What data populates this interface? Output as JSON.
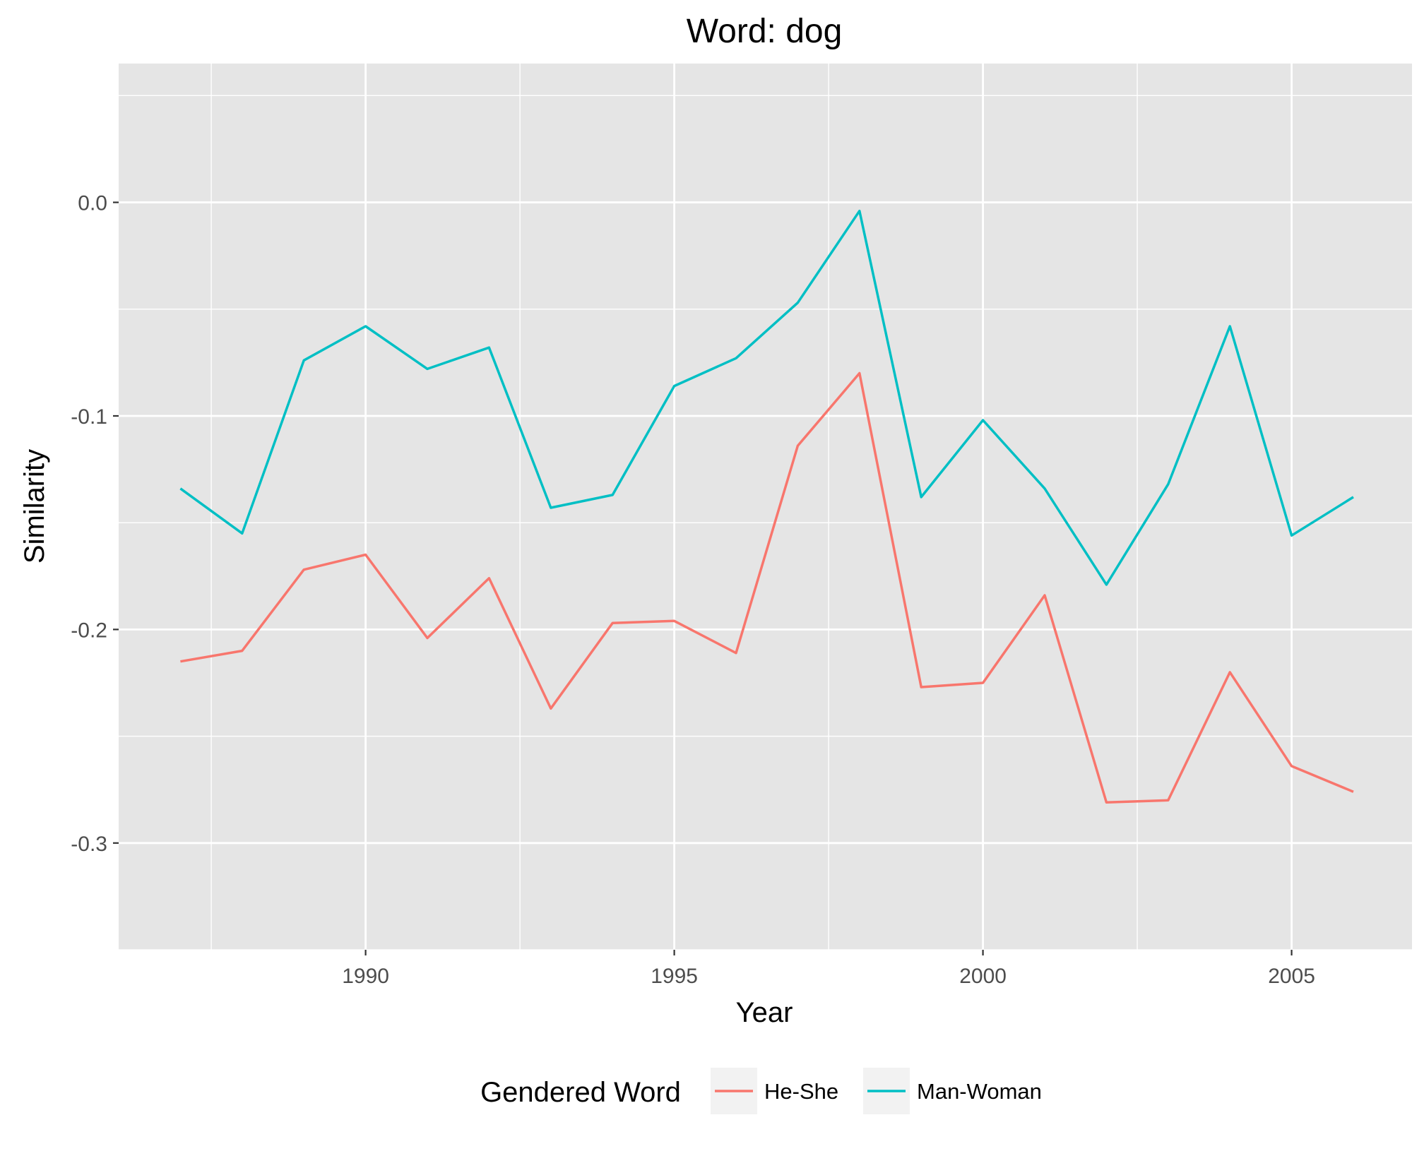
{
  "chart_data": {
    "type": "line",
    "title": "Word: dog",
    "xlabel": "Year",
    "ylabel": "Similarity",
    "xlim": [
      1986.0,
      2006.95
    ],
    "ylim": [
      -0.35,
      0.065
    ],
    "x_ticks": [
      1990,
      1995,
      2000,
      2005
    ],
    "x_tick_labels": [
      "1990",
      "1995",
      "2000",
      "2005"
    ],
    "y_ticks": [
      0.0,
      -0.1,
      -0.2,
      -0.3
    ],
    "y_tick_labels": [
      "0.0",
      "-0.1",
      "-0.2",
      "-0.3"
    ],
    "grid": true,
    "legend": {
      "title": "Gendered Word",
      "position": "bottom",
      "entries": [
        "He-She",
        "Man-Woman"
      ]
    },
    "x": [
      1987,
      1988,
      1989,
      1990,
      1991,
      1992,
      1993,
      1994,
      1995,
      1996,
      1997,
      1998,
      1999,
      2000,
      2001,
      2002,
      2003,
      2004,
      2005,
      2006
    ],
    "series": [
      {
        "name": "He-She",
        "color": "#F8766D",
        "values": [
          -0.215,
          -0.21,
          -0.172,
          -0.165,
          -0.204,
          -0.176,
          -0.237,
          -0.197,
          -0.196,
          -0.211,
          -0.114,
          -0.08,
          -0.227,
          -0.225,
          -0.184,
          -0.281,
          -0.28,
          -0.22,
          -0.264,
          -0.276
        ]
      },
      {
        "name": "Man-Woman",
        "color": "#00BFC4",
        "values": [
          -0.134,
          -0.155,
          -0.074,
          -0.058,
          -0.078,
          -0.068,
          -0.143,
          -0.137,
          -0.086,
          -0.073,
          -0.047,
          -0.004,
          -0.138,
          -0.102,
          -0.134,
          -0.179,
          -0.132,
          -0.058,
          -0.156,
          -0.138
        ]
      }
    ]
  },
  "colors": {
    "panel_background": "#E5E5E5",
    "grid": "#FFFFFF"
  }
}
